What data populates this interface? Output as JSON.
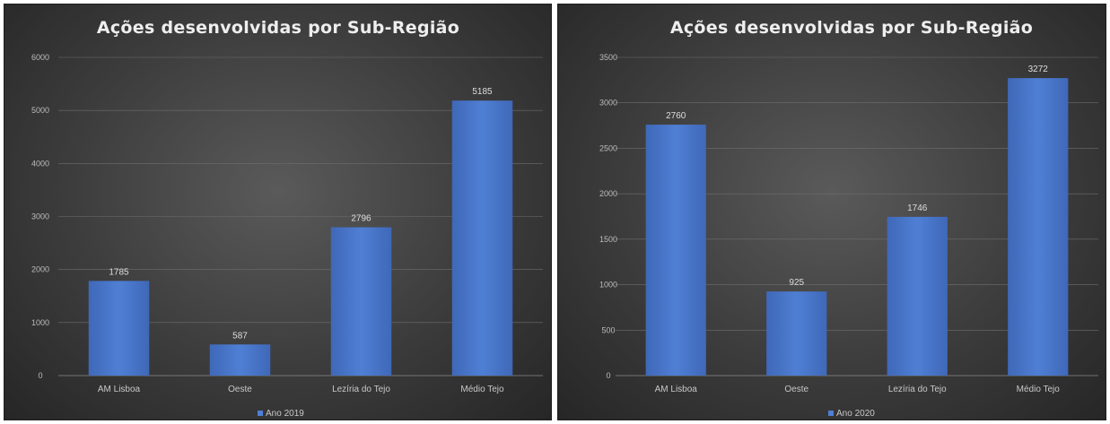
{
  "chart_data": [
    {
      "type": "bar",
      "title": "Ações desenvolvidas por Sub-Região",
      "categories": [
        "AM Lisboa",
        "Oeste",
        "Lezíria do Tejo",
        "Médio Tejo"
      ],
      "series": [
        {
          "name": "Ano 2019",
          "values": [
            1785,
            587,
            2796,
            5185
          ]
        }
      ],
      "ylim": [
        0,
        6000
      ],
      "yticks": [
        0,
        1000,
        2000,
        3000,
        4000,
        5000,
        6000
      ],
      "grid": true,
      "legend": "bottom",
      "bar_color": "#4472c4"
    },
    {
      "type": "bar",
      "title": "Ações desenvolvidas por Sub-Região",
      "categories": [
        "AM Lisboa",
        "Oeste",
        "Lezíria do Tejo",
        "Médio Tejo"
      ],
      "series": [
        {
          "name": "Ano 2020",
          "values": [
            2760,
            925,
            1746,
            3272
          ]
        }
      ],
      "ylim": [
        0,
        3500
      ],
      "yticks": [
        0,
        500,
        1000,
        1500,
        2000,
        2500,
        3000,
        3500
      ],
      "grid": true,
      "legend": "bottom",
      "bar_color": "#4472c4"
    }
  ]
}
